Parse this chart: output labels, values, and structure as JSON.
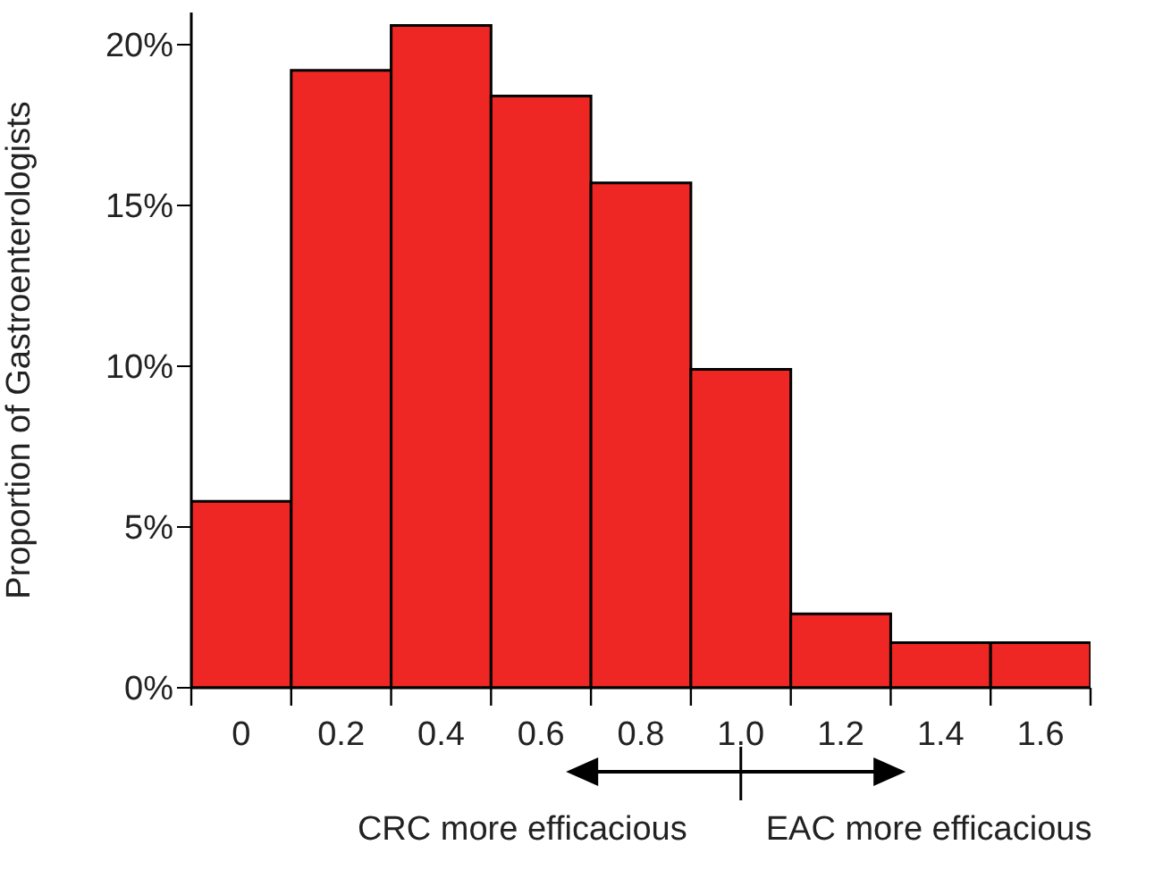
{
  "chart_data": {
    "type": "histogram",
    "ylabel": "Proportion of Gastroenterologists",
    "bins": [
      -0.1,
      0.1,
      0.3,
      0.5,
      0.7,
      0.9,
      1.1,
      1.3,
      1.5,
      1.7
    ],
    "values": [
      5.8,
      19.2,
      20.6,
      18.4,
      15.7,
      9.9,
      2.3,
      1.4,
      1.4
    ],
    "color": "#ee2624",
    "xlim": [
      -0.1,
      1.7
    ],
    "xticks": [
      {
        "value": -0.1,
        "label": null
      },
      0,
      {
        "value": 0.1,
        "label": null
      },
      0.2,
      {
        "value": 0.3,
        "label": null
      },
      0.4,
      {
        "value": 0.5,
        "label": null
      },
      0.6,
      {
        "value": 0.7,
        "label": null
      },
      0.8,
      {
        "value": 0.9,
        "label": null
      },
      {
        "value": 1,
        "label": "1.0"
      },
      {
        "value": 1.1,
        "label": null
      },
      1.2,
      {
        "value": 1.3,
        "label": null
      },
      1.4,
      {
        "value": 1.5,
        "label": null
      },
      1.6,
      {
        "value": 1.7,
        "label": null
      }
    ],
    "ylim": [
      0,
      21
    ],
    "yticks": [
      {
        "value": 0,
        "label": "0%"
      },
      {
        "value": 5,
        "label": "5%"
      },
      {
        "value": 10,
        "label": "10%"
      },
      {
        "value": 15,
        "label": "15%"
      },
      {
        "value": 20,
        "label": "20%"
      }
    ],
    "grid": false,
    "annotations": [
      "CRC more efficacious",
      "EAC more efficacious"
    ]
  }
}
